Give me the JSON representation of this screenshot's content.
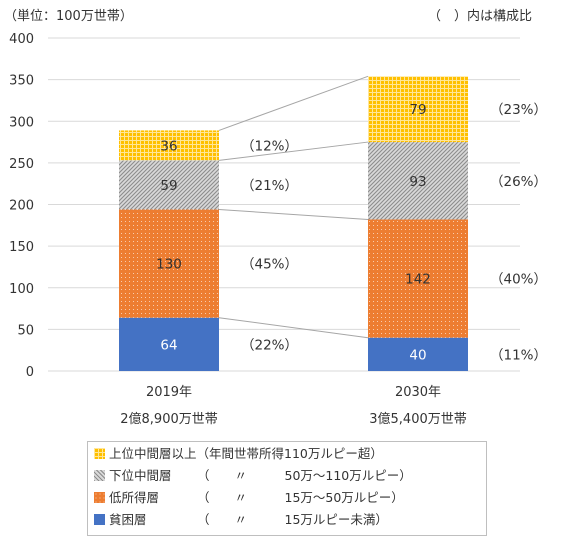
{
  "unit_label": "（単位：100万世帯）",
  "ratio_note": "（　）内は構成比",
  "chart_data": {
    "type": "bar",
    "stacked": true,
    "categories": [
      "2019年",
      "2030年"
    ],
    "category_sublabels": [
      "2億8,900万世帯",
      "3億5,400万世帯"
    ],
    "ylim": [
      0,
      400
    ],
    "yticks": [
      0,
      50,
      100,
      150,
      200,
      250,
      300,
      350,
      400
    ],
    "ytick_labels": [
      "0",
      "50",
      "100",
      "150",
      "200",
      "250",
      "300",
      "350",
      "400"
    ],
    "series": [
      {
        "name": "貧困層",
        "values": [
          64,
          40
        ],
        "shares": [
          "（22%）",
          "（11%）"
        ],
        "color": "#4472c4",
        "pattern": "solid"
      },
      {
        "name": "低所得層",
        "values": [
          130,
          142
        ],
        "shares": [
          "（45%）",
          "（40%）"
        ],
        "color": "#ed7d31",
        "pattern": "dots"
      },
      {
        "name": "下位中間層",
        "values": [
          59,
          93
        ],
        "shares": [
          "（21%）",
          "（26%）"
        ],
        "color": "#a5a5a5",
        "pattern": "diagonal"
      },
      {
        "name": "上位中間層以上",
        "values": [
          36,
          79
        ],
        "shares": [
          "（12%）",
          "（23%）"
        ],
        "color": "#ffc000",
        "pattern": "grid"
      }
    ],
    "grid": true
  },
  "legend": {
    "items": [
      {
        "label": "上位中間層以上",
        "sub": "（年間世帯所得110万ルピー超）",
        "color": "#ffc000",
        "pattern": "grid"
      },
      {
        "label": "下位中間層",
        "sub": "（　　〃　　　50万～110万ルピー）",
        "color": "#a5a5a5",
        "pattern": "diagonal"
      },
      {
        "label": "低所得層",
        "sub": "（　　〃　　　15万～50万ルピー）",
        "color": "#ed7d31",
        "pattern": "dots"
      },
      {
        "label": "貧困層",
        "sub": "（　　〃　　　15万ルピー未満）",
        "color": "#4472c4",
        "pattern": "solid"
      }
    ]
  }
}
